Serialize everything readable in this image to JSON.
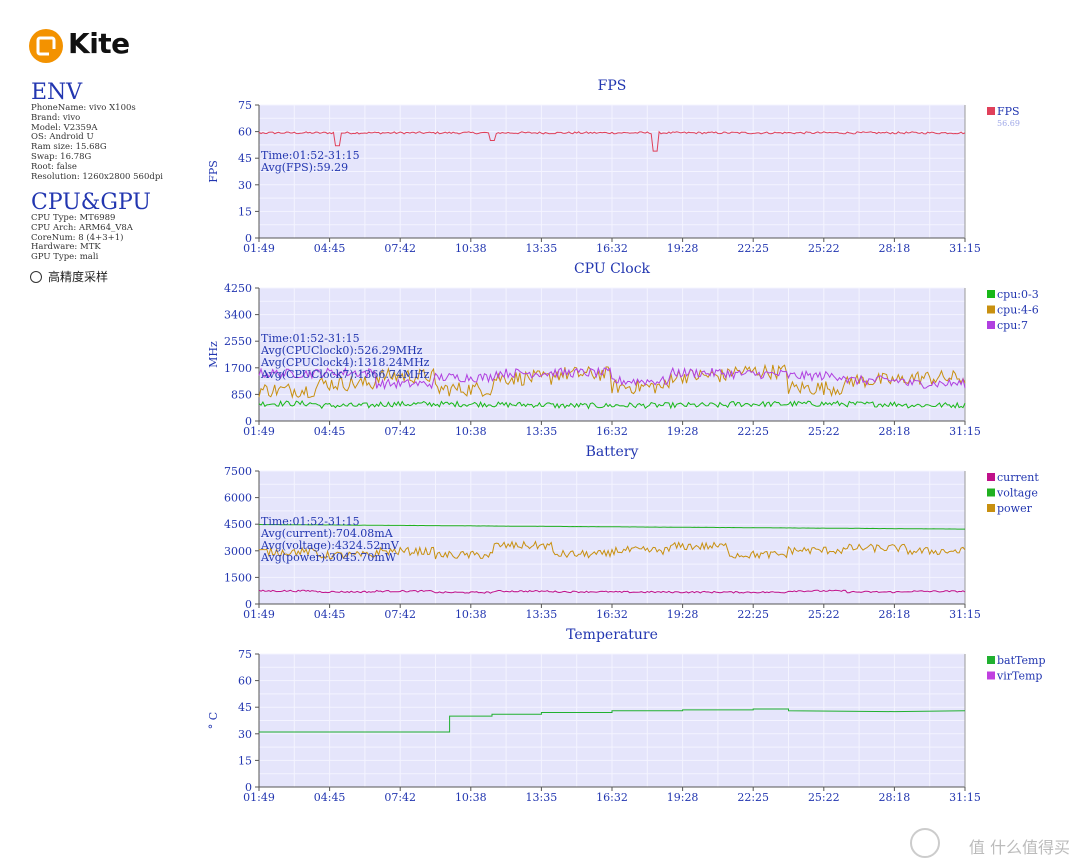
{
  "app": {
    "name": "Kite",
    "brand_color": "#f39200"
  },
  "env": {
    "heading": "ENV",
    "lines": [
      "PhoneName: vivo X100s",
      "Brand: vivo",
      "Model: V2359A",
      "OS: Android U",
      "Ram size: 15.68G",
      "Swap: 16.78G",
      "Root: false",
      "Resolution: 1260x2800 560dpi"
    ]
  },
  "cpu_gpu": {
    "heading": "CPU&GPU",
    "lines": [
      "CPU Type: MT6989",
      "CPU Arch: ARM64_V8A",
      "CoreNum: 8 (4+3+1)",
      "Hardware: MTK",
      "GPU Type: mali"
    ]
  },
  "option": {
    "label": "高精度采样",
    "checked": false
  },
  "watermark": {
    "text": "值 什么值得买"
  },
  "x_ticks": [
    "01:49",
    "04:45",
    "07:42",
    "10:38",
    "13:35",
    "16:32",
    "19:28",
    "22:25",
    "25:22",
    "28:18",
    "31:15"
  ],
  "colors": {
    "plot_bg": "#e5e5fb",
    "grid": "#ffffff",
    "axis_text": "#2236b0",
    "annot": "#2236b0"
  },
  "chart_data": [
    {
      "type": "line",
      "title": "FPS",
      "ylabel": "FPS",
      "ylim": [
        0,
        75
      ],
      "yticks": [
        0,
        15,
        30,
        45,
        60,
        75
      ],
      "annotation": [
        "Time:01:52-31:15",
        "Avg(FPS):59.29"
      ],
      "series": [
        {
          "name": "FPS",
          "color": "#e0405a",
          "legend_value": "56.69",
          "base": 59.3,
          "noise": 1.2,
          "dips": [
            [
              0.11,
              52
            ],
            [
              0.33,
              55
            ],
            [
              0.56,
              49
            ]
          ],
          "spikes": []
        }
      ]
    },
    {
      "type": "line",
      "title": "CPU Clock",
      "ylabel": "MHz",
      "ylim": [
        0,
        4250
      ],
      "yticks": [
        0,
        850,
        1700,
        2550,
        3400,
        4250
      ],
      "annotation": [
        "Time:01:52-31:15",
        "Avg(CPUClock0):526.29MHz",
        "Avg(CPUClock4):1318.24MHz",
        "Avg(CPUClock7):1366.74MHz"
      ],
      "series": [
        {
          "name": "cpu:0-3",
          "color": "#18b818",
          "base": 526,
          "noise": 180
        },
        {
          "name": "cpu:4-6",
          "color": "#c89010",
          "base": 1318,
          "noise": 480
        },
        {
          "name": "cpu:7",
          "color": "#b040e0",
          "base": 1367,
          "noise": 300
        }
      ]
    },
    {
      "type": "line",
      "title": "Battery",
      "ylabel": "",
      "ylim": [
        0,
        7500
      ],
      "yticks": [
        0,
        1500,
        3000,
        4500,
        6000,
        7500
      ],
      "annotation": [
        "Time:01:52-31:15",
        "Avg(current):704.08mA",
        "Avg(voltage):4324.52mV",
        "Avg(power):3045.70mW"
      ],
      "series": [
        {
          "name": "current",
          "color": "#c0108a",
          "base": 704,
          "noise": 90
        },
        {
          "name": "voltage",
          "color": "#20b020",
          "base": 4324,
          "noise": 8
        },
        {
          "name": "power",
          "color": "#c89010",
          "base": 3046,
          "noise": 450
        }
      ]
    },
    {
      "type": "line",
      "title": "Temperature",
      "ylabel": "° C",
      "ylim": [
        0,
        75
      ],
      "yticks": [
        0,
        15,
        30,
        45,
        60,
        75
      ],
      "annotation": [],
      "series": [
        {
          "name": "batTemp",
          "color": "#20b030",
          "steps": [
            [
              0,
              31
            ],
            [
              0.27,
              31
            ],
            [
              0.27,
              40
            ],
            [
              0.33,
              40
            ],
            [
              0.33,
              41
            ],
            [
              0.4,
              41
            ],
            [
              0.4,
              42
            ],
            [
              0.5,
              42
            ],
            [
              0.5,
              43
            ],
            [
              0.6,
              43
            ],
            [
              0.6,
              43.5
            ],
            [
              0.7,
              43.5
            ],
            [
              0.7,
              44
            ],
            [
              0.75,
              44
            ],
            [
              0.75,
              43
            ],
            [
              0.9,
              42.5
            ],
            [
              1,
              43
            ]
          ]
        },
        {
          "name": "virTemp",
          "color": "#c040e0",
          "steps": []
        }
      ]
    }
  ]
}
